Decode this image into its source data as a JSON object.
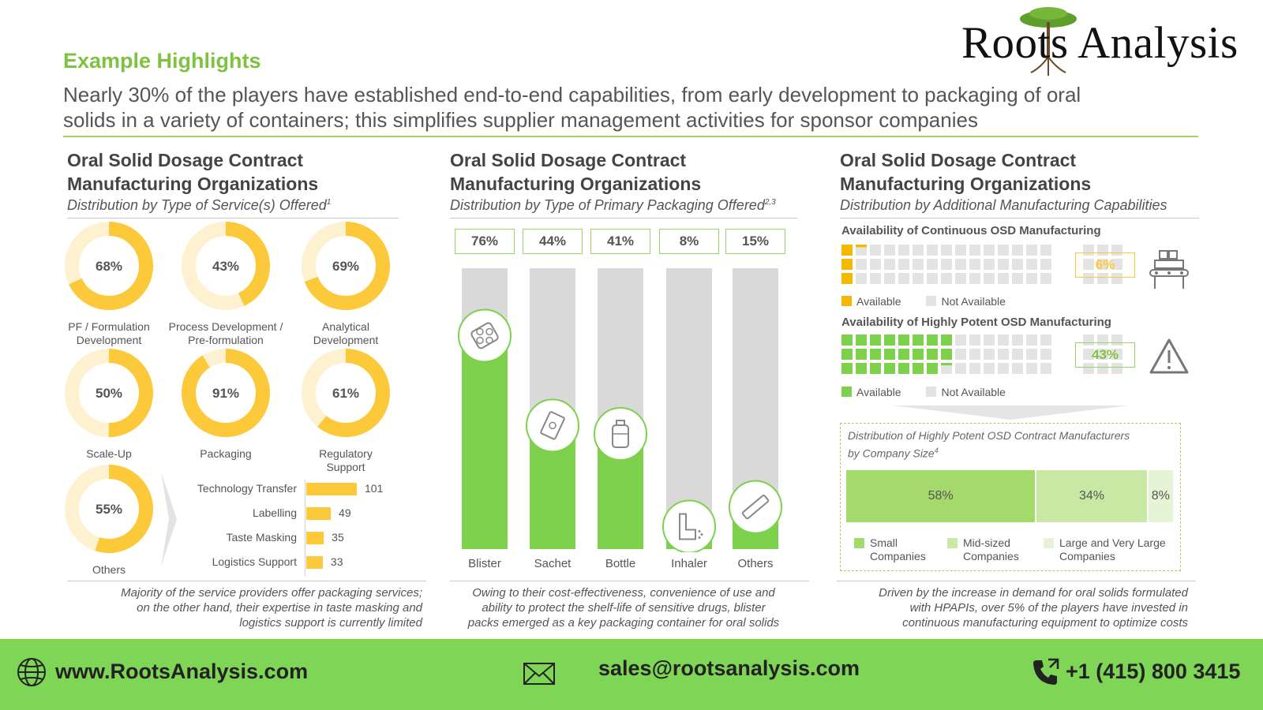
{
  "brand": {
    "name": "Roots Analysis"
  },
  "header": {
    "eyebrow": "Example Highlights",
    "headline_line1": "Nearly 30% of the players have established end-to-end capabilities, from early development to packaging of oral",
    "headline_line2": "solids in a variety of containers; this simplifies supplier management activities for sponsor companies"
  },
  "colors": {
    "green": "#7fc241",
    "yellow": "#fcc93a",
    "pale_yellow": "#fdf1d0",
    "grey": "#d9d9d9",
    "bar_green": "#7dd14d"
  },
  "panel1": {
    "title_line1": "Oral Solid Dosage Contract",
    "title_line2": "Manufacturing Organizations",
    "subtitle": "Distribution by Type of Service(s) Offered",
    "subtitle_sup": "1",
    "note_line1": "Majority of the service providers offer packaging services;",
    "note_line2": "on the other hand, their expertise in taste masking and",
    "note_line3": "logistics support is currently limited"
  },
  "panel2": {
    "title_line1": "Oral Solid Dosage Contract",
    "title_line2": "Manufacturing Organizations",
    "subtitle": "Distribution by Type of Primary Packaging Offered",
    "subtitle_sup": "2,3",
    "note_line1": "Owing to their cost-effectiveness, convenience of use and",
    "note_line2": "ability to protect the shelf-life of sensitive drugs, blister",
    "note_line3": "packs emerged as a key packaging container for oral solids"
  },
  "panel3": {
    "title_line1": "Oral Solid Dosage Contract",
    "title_line2": "Manufacturing Organizations",
    "subtitle": "Distribution by Additional Manufacturing Capabilities",
    "continuous_title": "Availability of Continuous OSD Manufacturing",
    "potent_title": "Availability of Highly Potent OSD Manufacturing",
    "legend_available": "Available",
    "legend_not_available": "Not Available",
    "size_title_line1": "Distribution of Highly Potent OSD Contract Manufacturers",
    "size_title_line2": "by Company Size",
    "size_title_sup": "4",
    "note_line1": "Driven by the increase in demand for oral solids formulated",
    "note_line2": "with HPAPIs, over 5% of the players have invested in",
    "note_line3": "continuous manufacturing equipment to optimize costs"
  },
  "chart_data": [
    {
      "type": "pie",
      "title": "Distribution by Type of Service(s) Offered",
      "categories": [
        "PF / Formulation Development",
        "Process Development / Pre-formulation",
        "Analytical Development",
        "Scale-Up",
        "Packaging",
        "Regulatory Support",
        "Others"
      ],
      "values": [
        68,
        43,
        69,
        50,
        91,
        61,
        55
      ],
      "value_labels": [
        "68%",
        "43%",
        "69%",
        "50%",
        "91%",
        "61%",
        "55%"
      ],
      "label_lines": [
        [
          "PF / Formulation",
          "Development"
        ],
        [
          "Process Development /",
          "Pre-formulation"
        ],
        [
          "Analytical",
          "Development"
        ],
        [
          "Scale-Up"
        ],
        [
          "Packaging"
        ],
        [
          "Regulatory",
          "Support"
        ],
        [
          "Others"
        ]
      ]
    },
    {
      "type": "bar",
      "orientation": "horizontal",
      "title": "Others breakdown",
      "categories": [
        "Technology Transfer",
        "Labelling",
        "Taste Masking",
        "Logistics Support"
      ],
      "values": [
        101,
        49,
        35,
        33
      ],
      "xlim": [
        0,
        101
      ]
    },
    {
      "type": "bar",
      "title": "Distribution by Type of Primary Packaging Offered",
      "categories": [
        "Blister",
        "Sachet",
        "Bottle",
        "Inhaler",
        "Others"
      ],
      "values": [
        76,
        44,
        41,
        8,
        15
      ],
      "value_labels": [
        "76%",
        "44%",
        "41%",
        "8%",
        "15%"
      ],
      "ylim": [
        0,
        100
      ]
    },
    {
      "type": "heatmap",
      "title": "Availability of Continuous OSD Manufacturing",
      "series": [
        {
          "name": "Available",
          "values": [
            6
          ]
        },
        {
          "name": "Not Available",
          "values": [
            94
          ]
        }
      ],
      "value_label": "6%"
    },
    {
      "type": "heatmap",
      "title": "Availability of Highly Potent OSD Manufacturing",
      "series": [
        {
          "name": "Available",
          "values": [
            43
          ]
        },
        {
          "name": "Not Available",
          "values": [
            57
          ]
        }
      ],
      "value_label": "43%"
    },
    {
      "type": "bar",
      "stacked": true,
      "title": "Distribution of Highly Potent OSD Contract Manufacturers by Company Size",
      "series": [
        {
          "name": "Small Companies",
          "legend_lines": [
            "Small",
            "Companies"
          ],
          "values": [
            58
          ],
          "label": "58%"
        },
        {
          "name": "Mid-sized Companies",
          "legend_lines": [
            "Mid-sized",
            "Companies"
          ],
          "values": [
            34
          ],
          "label": "34%"
        },
        {
          "name": "Large and Very Large Companies",
          "legend_lines": [
            "Large and Very Large",
            "Companies"
          ],
          "values": [
            8
          ],
          "label": "8%"
        }
      ]
    }
  ],
  "footer": {
    "website": "www.RootsAnalysis.com",
    "email": "sales@rootsanalysis.com",
    "phone": "+1 (415) 800 3415"
  }
}
